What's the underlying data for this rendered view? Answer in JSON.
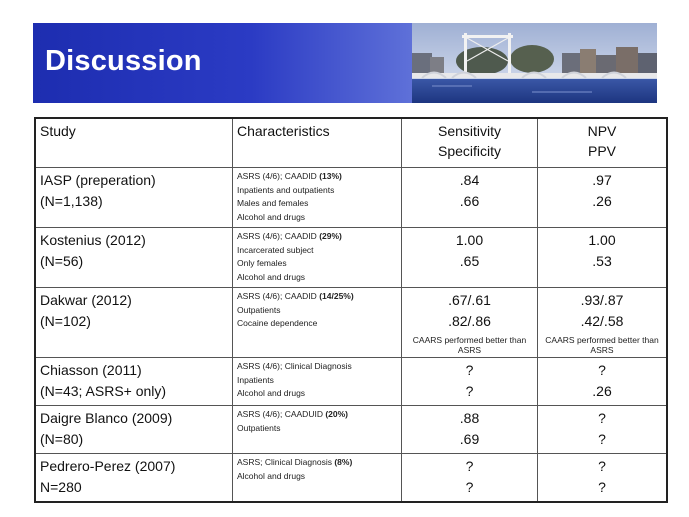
{
  "slide": {
    "title": "Discussion"
  },
  "table": {
    "headers": {
      "study": "Study",
      "characteristics": "Characteristics",
      "sensitivity": "Sensitivity",
      "specificity": "Specificity",
      "npv": "NPV",
      "ppv": "PPV"
    },
    "rows": [
      {
        "study": "IASP (preperation)",
        "n": "(N=1,138)",
        "char_main": "ASRS (4/6); CAADID",
        "char_pct": "(13%)",
        "char_lines": [
          "Inpatients and outpatients",
          "Males and females",
          "Alcohol and drugs"
        ],
        "sensitivity": ".84",
        "specificity": ".66",
        "npv": ".97",
        "ppv": ".26"
      },
      {
        "study": "Kostenius (2012)",
        "n": "(N=56)",
        "char_main": "ASRS (4/6); CAADID",
        "char_pct": "(29%)",
        "char_lines": [
          "Incarcerated subject",
          "Only females",
          "Alcohol and drugs"
        ],
        "sensitivity": "1.00",
        "specificity": ".65",
        "npv": "1.00",
        "ppv": ".53"
      },
      {
        "study": "Dakwar (2012)",
        "n": "(N=102)",
        "char_main": "ASRS (4/6); CAADID",
        "char_pct": "(14/25%)",
        "char_lines": [
          "Outpatients",
          "Cocaine dependence"
        ],
        "sensitivity": ".67/.61",
        "specificity": ".82/.86",
        "npv": ".93/.87",
        "ppv": ".42/.58",
        "note_sens": "CAARS performed better than ASRS",
        "note_npv": "CAARS performed better than ASRS"
      },
      {
        "study": "Chiasson (2011)",
        "n": "(N=43; ASRS+ only)",
        "char_main": "ASRS (4/6); Clinical Diagnosis",
        "char_pct": "",
        "char_lines": [
          "Inpatients",
          "Alcohol and drugs"
        ],
        "sensitivity": "?",
        "specificity": "?",
        "npv": "?",
        "ppv": ".26"
      },
      {
        "study": "Daigre Blanco (2009)",
        "n": "(N=80)",
        "char_main": "ASRS (4/6); CAADUID",
        "char_pct": "(20%)",
        "char_lines": [
          "Outpatients"
        ],
        "sensitivity": ".88",
        "specificity": ".69",
        "npv": "?",
        "ppv": "?"
      },
      {
        "study": "Pedrero-Perez (2007)",
        "n": "N=280",
        "char_main": "ASRS; Clinical Diagnosis",
        "char_pct": "(8%)",
        "char_lines": [
          "Alcohol and drugs"
        ],
        "sensitivity": "?",
        "specificity": "?",
        "npv": "?",
        "ppv": "?"
      }
    ]
  },
  "colors": {
    "banner_dark": "#1d2db0",
    "banner_light": "#c7cef0",
    "title_text": "#ffffff",
    "table_border": "#222222"
  },
  "icons": {
    "banner_photo": "bridge-canal-photo"
  }
}
